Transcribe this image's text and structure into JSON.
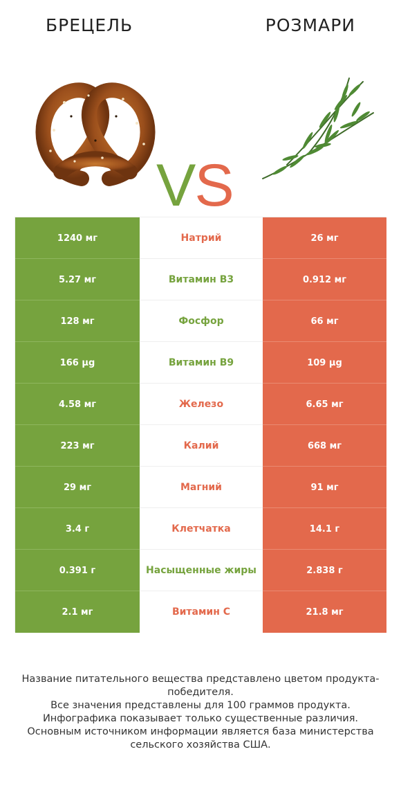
{
  "header": {
    "left_title": "БРЕЦЕЛЬ",
    "right_title": "РОЗМАРИ",
    "vs_v": "V",
    "vs_s": "S"
  },
  "colors": {
    "winner_left": "#76a33e",
    "winner_right": "#e3694c"
  },
  "icons": {
    "left": "pretzel-image",
    "right": "rosemary-image"
  },
  "rows": [
    {
      "left": "1240 мг",
      "nutrient": "Натрий",
      "right": "26 мг",
      "winner": "right"
    },
    {
      "left": "5.27 мг",
      "nutrient": "Витамин B3",
      "right": "0.912 мг",
      "winner": "left"
    },
    {
      "left": "128 мг",
      "nutrient": "Фосфор",
      "right": "66 мг",
      "winner": "left"
    },
    {
      "left": "166 µg",
      "nutrient": "Витамин B9",
      "right": "109 µg",
      "winner": "left"
    },
    {
      "left": "4.58 мг",
      "nutrient": "Железо",
      "right": "6.65 мг",
      "winner": "right"
    },
    {
      "left": "223 мг",
      "nutrient": "Калий",
      "right": "668 мг",
      "winner": "right"
    },
    {
      "left": "29 мг",
      "nutrient": "Магний",
      "right": "91 мг",
      "winner": "right"
    },
    {
      "left": "3.4 г",
      "nutrient": "Клетчатка",
      "right": "14.1 г",
      "winner": "right"
    },
    {
      "left": "0.391 г",
      "nutrient": "Насыщенные жиры",
      "right": "2.838 г",
      "winner": "left"
    },
    {
      "left": "2.1 мг",
      "nutrient": "Витамин C",
      "right": "21.8 мг",
      "winner": "right"
    }
  ],
  "footer": {
    "line1": "Название питательного вещества представлено цветом продукта-победителя.",
    "line2": "Все значения представлены для 100 граммов продукта.",
    "line3": "Инфографика показывает только существенные различия.",
    "line4": "Основным источником информации является база министерства сельского хозяйства США."
  }
}
